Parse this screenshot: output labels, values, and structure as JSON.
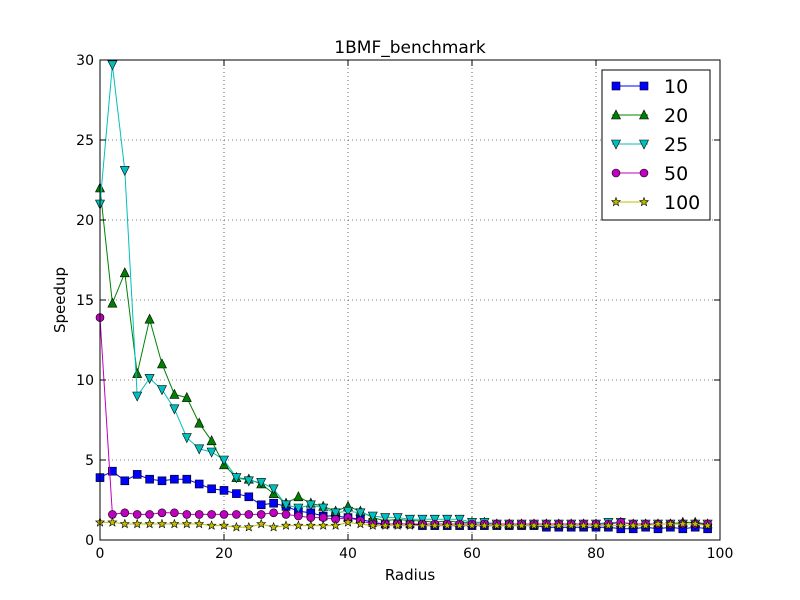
{
  "chart_data": {
    "type": "line",
    "title": "1BMF_benchmark",
    "xlabel": "Radius",
    "ylabel": "Speedup",
    "xlim": [
      0,
      100
    ],
    "ylim": [
      0,
      30
    ],
    "xticks": [
      0,
      20,
      40,
      60,
      80,
      100
    ],
    "yticks": [
      0,
      5,
      10,
      15,
      20,
      25,
      30
    ],
    "grid": true,
    "legend_position": "top-right",
    "x": [
      0,
      2,
      4,
      6,
      8,
      10,
      12,
      14,
      16,
      18,
      20,
      22,
      24,
      26,
      28,
      30,
      32,
      34,
      36,
      38,
      40,
      42,
      44,
      46,
      48,
      50,
      52,
      54,
      56,
      58,
      60,
      62,
      64,
      66,
      68,
      70,
      72,
      74,
      76,
      78,
      80,
      82,
      84,
      86,
      88,
      90,
      92,
      94,
      96,
      98
    ],
    "series": [
      {
        "name": "10",
        "color": "#0000ff",
        "marker": "square",
        "values": [
          3.9,
          4.3,
          3.7,
          4.1,
          3.8,
          3.7,
          3.8,
          3.8,
          3.5,
          3.2,
          3.1,
          2.9,
          2.7,
          2.2,
          2.3,
          2.1,
          1.8,
          1.7,
          1.5,
          1.5,
          1.4,
          1.3,
          1.1,
          1.0,
          1.0,
          1.0,
          0.9,
          0.9,
          0.9,
          0.9,
          0.9,
          0.9,
          0.9,
          0.9,
          0.9,
          0.9,
          0.8,
          0.8,
          0.8,
          0.8,
          0.8,
          0.8,
          0.7,
          0.7,
          0.8,
          0.7,
          0.8,
          0.7,
          0.8,
          0.7
        ]
      },
      {
        "name": "20",
        "color": "#008000",
        "marker": "triangle-up",
        "values": [
          22.0,
          14.8,
          16.7,
          10.4,
          13.8,
          11.0,
          9.1,
          8.9,
          7.3,
          6.2,
          4.7,
          3.9,
          3.8,
          3.5,
          2.9,
          2.3,
          2.7,
          2.3,
          2.1,
          1.8,
          2.1,
          1.8,
          1.4,
          1.2,
          1.3,
          1.2,
          1.2,
          1.1,
          1.2,
          1.1,
          1.1,
          1.1,
          1.0,
          1.0,
          1.0,
          1.0,
          1.0,
          1.0,
          1.0,
          1.0,
          1.0,
          1.0,
          1.1,
          1.0,
          1.0,
          1.0,
          1.0,
          1.1,
          1.1,
          1.0
        ]
      },
      {
        "name": "25",
        "color": "#00bfbf",
        "marker": "triangle-down",
        "values": [
          21.0,
          29.7,
          23.1,
          9.0,
          10.1,
          9.4,
          8.2,
          6.4,
          5.7,
          5.5,
          5.0,
          3.9,
          3.7,
          3.6,
          3.2,
          2.2,
          2.0,
          2.2,
          2.0,
          1.7,
          1.8,
          1.7,
          1.5,
          1.4,
          1.4,
          1.3,
          1.3,
          1.3,
          1.3,
          1.3,
          1.1,
          1.1,
          1.0,
          1.0,
          1.0,
          1.0,
          1.0,
          1.0,
          1.0,
          1.0,
          1.0,
          1.1,
          1.1,
          1.0,
          1.0,
          1.0,
          1.0,
          1.0,
          1.0,
          1.0
        ]
      },
      {
        "name": "50",
        "color": "#bf00bf",
        "marker": "circle",
        "values": [
          13.9,
          1.6,
          1.7,
          1.6,
          1.6,
          1.7,
          1.7,
          1.6,
          1.6,
          1.6,
          1.6,
          1.6,
          1.6,
          1.6,
          1.7,
          1.6,
          1.5,
          1.4,
          1.4,
          1.3,
          1.4,
          1.2,
          1.0,
          1.0,
          1.0,
          1.0,
          1.0,
          1.0,
          1.0,
          1.0,
          1.0,
          1.0,
          1.0,
          1.0,
          1.0,
          1.0,
          1.0,
          1.0,
          1.0,
          1.0,
          1.0,
          1.0,
          1.1,
          1.0,
          1.0,
          1.0,
          1.0,
          1.0,
          1.0,
          1.0
        ]
      },
      {
        "name": "100",
        "color": "#bfbf00",
        "marker": "star",
        "values": [
          1.1,
          1.1,
          1.0,
          1.0,
          1.0,
          1.0,
          1.0,
          1.0,
          1.0,
          0.9,
          0.9,
          0.8,
          0.8,
          1.0,
          0.8,
          0.9,
          0.9,
          0.9,
          0.9,
          0.9,
          1.1,
          1.0,
          0.9,
          0.9,
          0.9,
          0.9,
          0.9,
          0.9,
          0.9,
          0.9,
          0.9,
          0.9,
          0.9,
          0.9,
          0.9,
          0.9,
          0.9,
          0.9,
          0.9,
          0.9,
          0.9,
          0.9,
          0.9,
          0.9,
          0.9,
          1.0,
          1.0,
          1.0,
          1.0,
          0.9
        ]
      }
    ]
  }
}
